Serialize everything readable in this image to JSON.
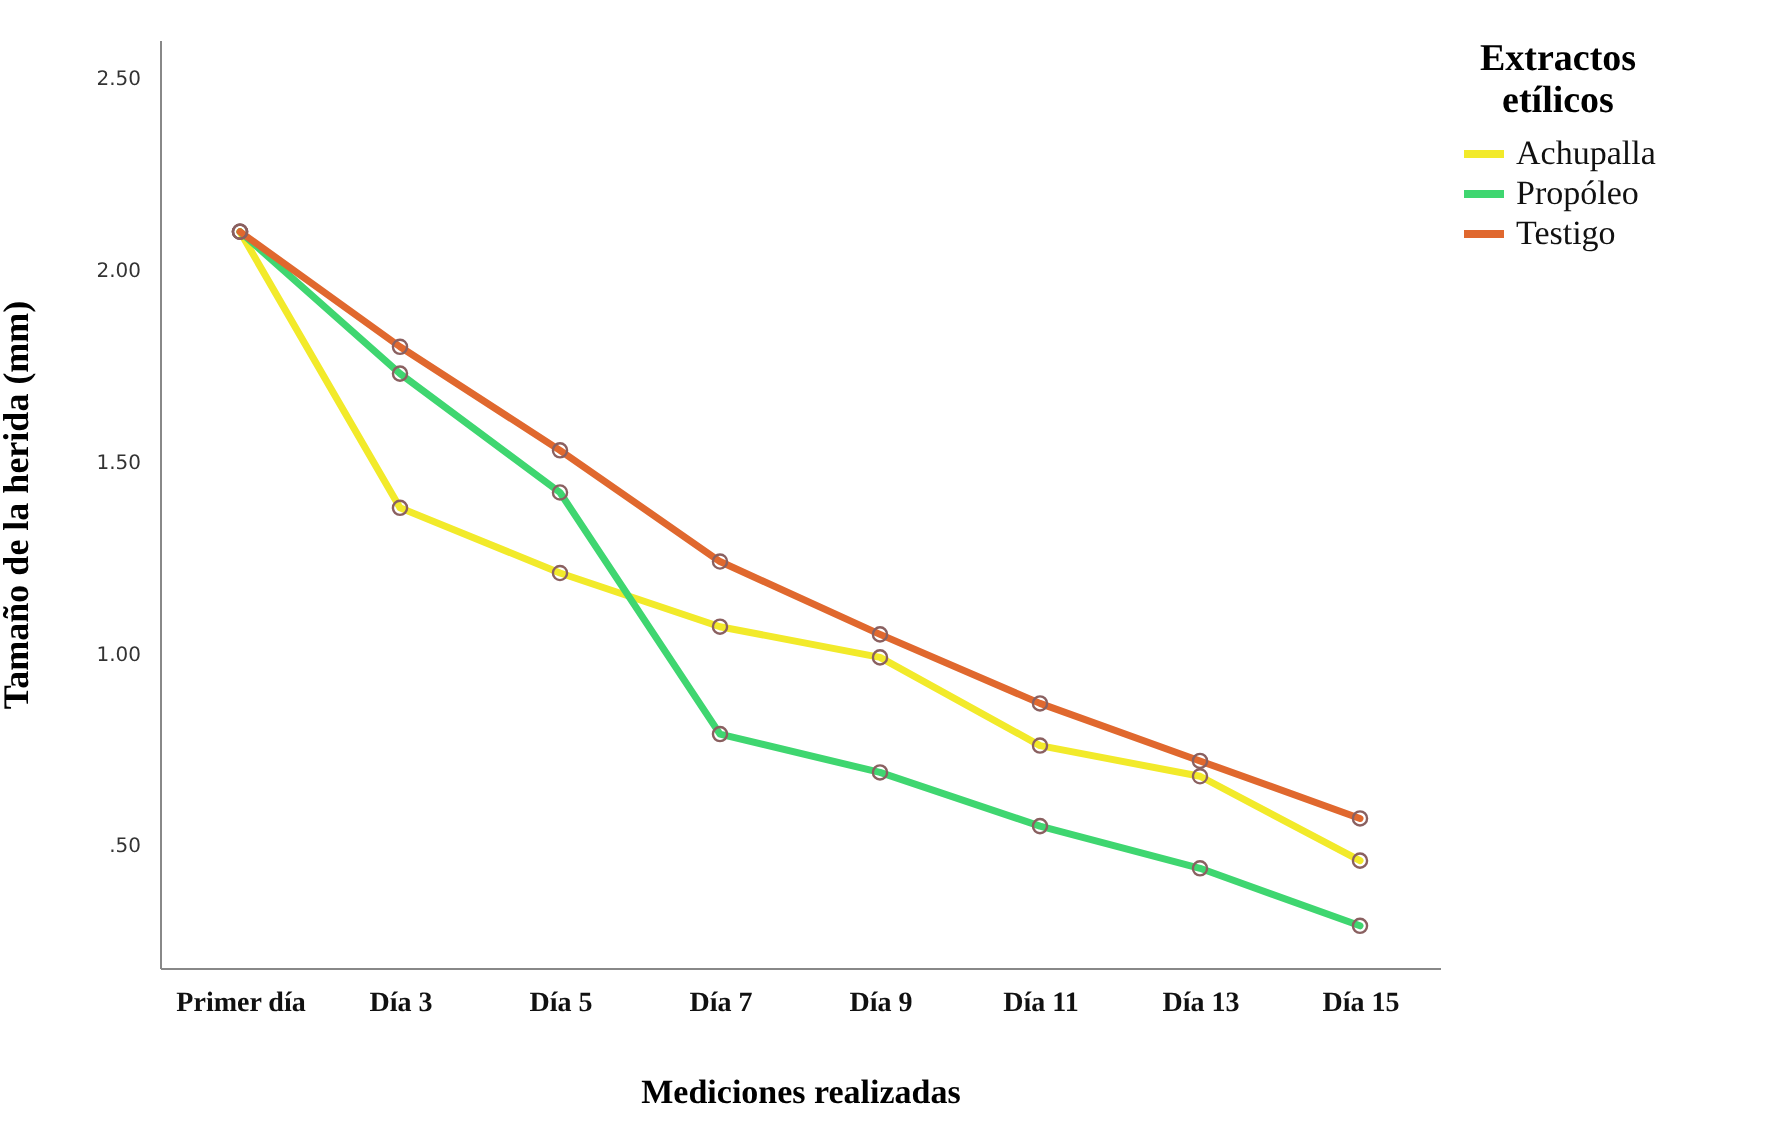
{
  "chart_data": {
    "type": "line",
    "xlabel": "Mediciones realizadas",
    "ylabel": "Tamaño de la herida (mm)",
    "legend_title": "Extractos etílicos",
    "legend": "top right",
    "marker": "circle",
    "grid": false,
    "categories": [
      "Primer día",
      "Día 3",
      "Día 5",
      "Día 7",
      "Día 9",
      "Día 11",
      "Día 13",
      "Día 15"
    ],
    "ylim": [
      0.18,
      2.6
    ],
    "yticks": [
      {
        "value": 0.5,
        "label": ".50"
      },
      {
        "value": 1,
        "label": "1.00"
      },
      {
        "value": 1.5,
        "label": "1.50"
      },
      {
        "value": 2,
        "label": "2.00"
      },
      {
        "value": 2.5,
        "label": "2.50"
      }
    ],
    "series": [
      {
        "name": "Achupalla",
        "color": "#f2ea2a",
        "values": [
          2.1,
          1.38,
          1.21,
          1.07,
          0.99,
          0.76,
          0.68,
          0.46
        ]
      },
      {
        "name": "Propóleo",
        "color": "#3fd670",
        "values": [
          2.1,
          1.73,
          1.42,
          0.79,
          0.69,
          0.55,
          0.44,
          0.29
        ]
      },
      {
        "name": "Testigo",
        "color": "#e0682e",
        "values": [
          2.1,
          1.8,
          1.53,
          1.24,
          1.05,
          0.87,
          0.72,
          0.57
        ]
      }
    ]
  }
}
